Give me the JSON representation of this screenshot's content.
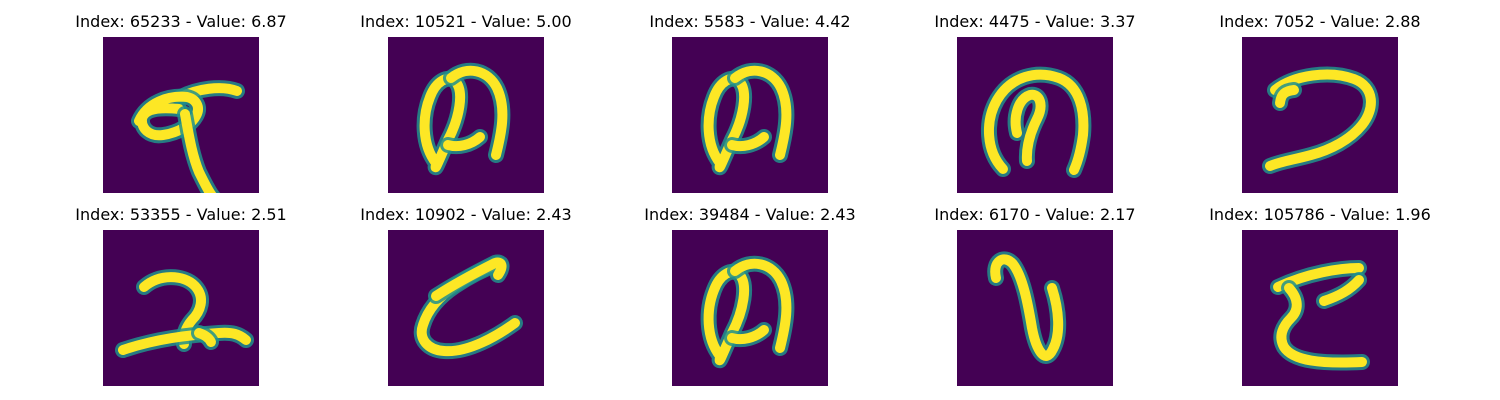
{
  "chart_data": {
    "type": "image_grid",
    "layout": {
      "rows": 2,
      "columns": 5
    },
    "colors": {
      "background": "#440154",
      "stroke": "#FDE725",
      "edge": "#21918C"
    },
    "panels": [
      {
        "index": 65233,
        "value": 6.87,
        "title": "Index: 65233 - Value: 6.87",
        "glyph": "stroke-shape-1"
      },
      {
        "index": 10521,
        "value": 5.0,
        "title": "Index: 10521 - Value: 5.00",
        "glyph": "stroke-shape-2"
      },
      {
        "index": 5583,
        "value": 4.42,
        "title": "Index: 5583 - Value: 4.42",
        "glyph": "stroke-shape-2"
      },
      {
        "index": 4475,
        "value": 3.37,
        "title": "Index: 4475 - Value: 3.37",
        "glyph": "stroke-shape-3"
      },
      {
        "index": 7052,
        "value": 2.88,
        "title": "Index: 7052 - Value: 2.88",
        "glyph": "stroke-shape-4"
      },
      {
        "index": 53355,
        "value": 2.51,
        "title": "Index: 53355 - Value: 2.51",
        "glyph": "stroke-shape-5"
      },
      {
        "index": 10902,
        "value": 2.43,
        "title": "Index: 10902 - Value: 2.43",
        "glyph": "stroke-shape-6"
      },
      {
        "index": 39484,
        "value": 2.43,
        "title": "Index: 39484 - Value: 2.43",
        "glyph": "stroke-shape-2"
      },
      {
        "index": 6170,
        "value": 2.17,
        "title": "Index: 6170 - Value: 2.17",
        "glyph": "stroke-shape-7"
      },
      {
        "index": 105786,
        "value": 1.96,
        "title": "Index: 105786 - Value: 1.96",
        "glyph": "stroke-shape-8"
      }
    ]
  }
}
